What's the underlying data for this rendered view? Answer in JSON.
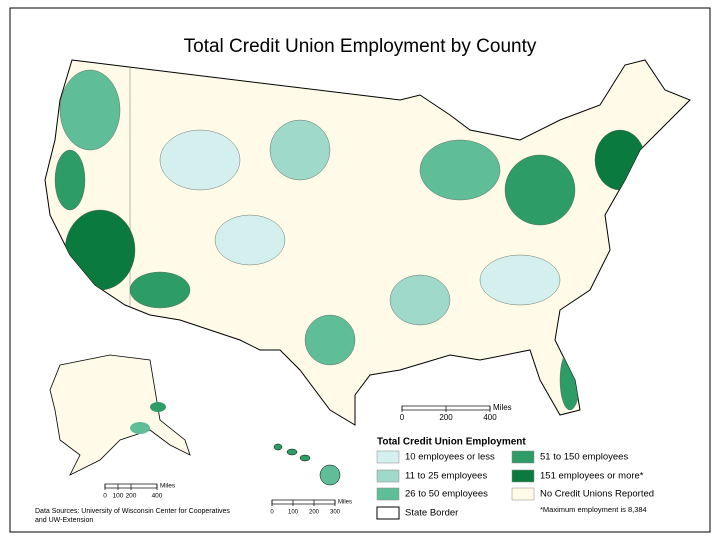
{
  "header": {
    "title": "Total Credit Union Employment by County"
  },
  "legend": {
    "title": "Total Credit Union Employment",
    "items": [
      {
        "label": "10 employees or less",
        "color": "#d3f0ef"
      },
      {
        "label": "11 to 25 employees",
        "color": "#9ed9c9"
      },
      {
        "label": "26 to 50 employees",
        "color": "#5fbd98"
      },
      {
        "label": "51 to 150 employees",
        "color": "#2e9c67"
      },
      {
        "label": "151 employees or more*",
        "color": "#0b7a3f"
      },
      {
        "label": "No Credit Unions Reported",
        "color": "#fffbe8"
      }
    ],
    "border_label": "State Border"
  },
  "scale_bars": [
    {
      "unit": "Miles",
      "ticks": [
        0,
        200,
        400
      ]
    },
    {
      "unit": "Miles",
      "ticks": [
        0,
        100,
        200,
        400
      ]
    },
    {
      "unit": "Miles",
      "ticks": [
        0,
        100,
        200,
        300
      ]
    }
  ],
  "footnote": "*Maximum employment is 8,384",
  "sources": [
    "Data Sources: University of Wisconsin Center for Cooperatives",
    "and UW-Extension"
  ]
}
